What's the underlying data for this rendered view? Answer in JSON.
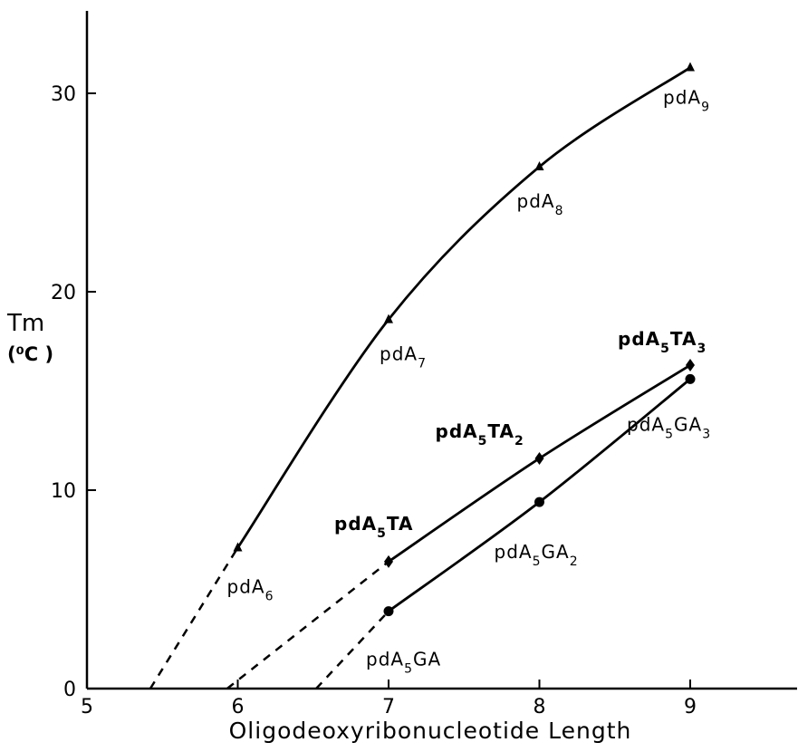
{
  "chart_data": {
    "type": "line",
    "xlabel": "Oligodeoxyribonucleotide Length",
    "ylabel": "Tm",
    "ylabel_unit": "(⁰C )",
    "xlim": [
      5,
      9.6
    ],
    "ylim": [
      0,
      34
    ],
    "x_ticks": [
      "5",
      "6",
      "7",
      "8",
      "9"
    ],
    "y_ticks": [
      "0",
      "10",
      "20",
      "30"
    ],
    "grid": false,
    "series": [
      {
        "marker": "triangle",
        "x": [
          6,
          7,
          8,
          9
        ],
        "y": [
          7.1,
          18.6,
          26.3,
          31.3
        ],
        "labels": [
          {
            "base": "pdA",
            "sub": "6"
          },
          {
            "base": "pdA",
            "sub": "7"
          },
          {
            "base": "pdA",
            "sub": "8"
          },
          {
            "base": "pdA",
            "sub": "9"
          }
        ],
        "extrapolation": {
          "x": [
            5.42,
            6
          ],
          "y": [
            0,
            7.1
          ]
        }
      },
      {
        "marker": "diamond",
        "x": [
          7,
          8,
          9
        ],
        "y": [
          6.4,
          11.6,
          16.3
        ],
        "labels": [
          {
            "base": "pdA",
            "sub": "5",
            "tail": "TA"
          },
          {
            "base": "pdA",
            "sub": "5",
            "tail": "TA",
            "tail_sub": "2"
          },
          {
            "base": "pdA",
            "sub": "5",
            "tail": "TA",
            "tail_sub": "3"
          }
        ],
        "extrapolation": {
          "x": [
            5.93,
            7
          ],
          "y": [
            0,
            6.4
          ]
        }
      },
      {
        "marker": "circle",
        "x": [
          7,
          8,
          9
        ],
        "y": [
          3.9,
          9.4,
          15.6
        ],
        "labels": [
          {
            "base": "pdA",
            "sub": "5",
            "tail": "GA"
          },
          {
            "base": "pdA",
            "sub": "5",
            "tail": "GA",
            "tail_sub": "2"
          },
          {
            "base": "pdA",
            "sub": "5",
            "tail": "GA",
            "tail_sub": "3"
          }
        ],
        "extrapolation": {
          "x": [
            6.52,
            7
          ],
          "y": [
            0,
            3.9
          ]
        }
      }
    ]
  }
}
